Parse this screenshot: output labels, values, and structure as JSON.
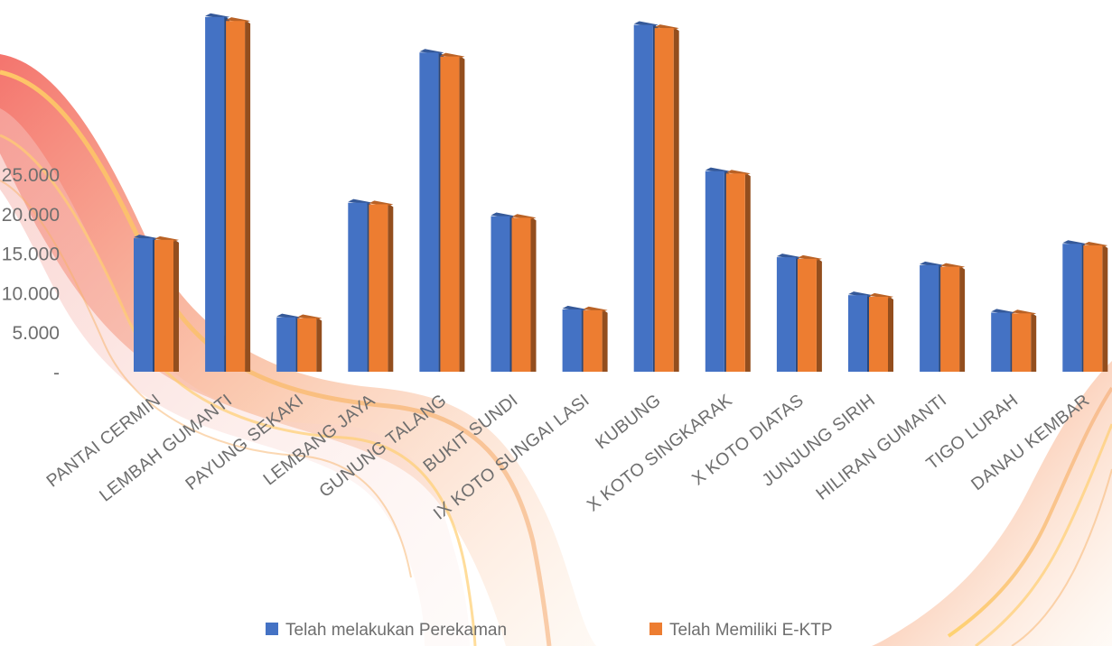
{
  "chart_data": {
    "type": "bar",
    "categories": [
      "PANTAI CERMIN",
      "LEMBAH GUMANTI",
      "PAYUNG SEKAKI",
      "LEMBANG JAYA",
      "GUNUNG TALANG",
      "BUKIT SUNDI",
      "IX KOTO SUNGAI LASI",
      "KUBUNG",
      "X KOTO SINGKARAK",
      "X KOTO DIATAS",
      "JUNJUNG SIRIH",
      "HILIRAN GUMANTI",
      "TIGO LURAH",
      "DANAU KEMBAR"
    ],
    "series": [
      {
        "name": "Telah melakukan Perekaman",
        "color": "#4472C4",
        "values": [
          17000,
          45000,
          7000,
          21500,
          40500,
          19800,
          8000,
          44000,
          25500,
          14600,
          9800,
          13600,
          7600,
          16300
        ]
      },
      {
        "name": "Telah Memiliki E-KTP",
        "color": "#ED7D31",
        "values": [
          16800,
          44500,
          6900,
          21300,
          40000,
          19600,
          7900,
          43600,
          25200,
          14400,
          9600,
          13400,
          7500,
          16100
        ]
      }
    ],
    "yticks": [
      "-",
      "5.000",
      "10.000",
      "15.000",
      "20.000",
      "25.000"
    ],
    "ytick_values": [
      0,
      5000,
      10000,
      15000,
      20000,
      25000
    ],
    "ylim": [
      0,
      47000
    ],
    "legend_position": "bottom",
    "grid": false
  }
}
